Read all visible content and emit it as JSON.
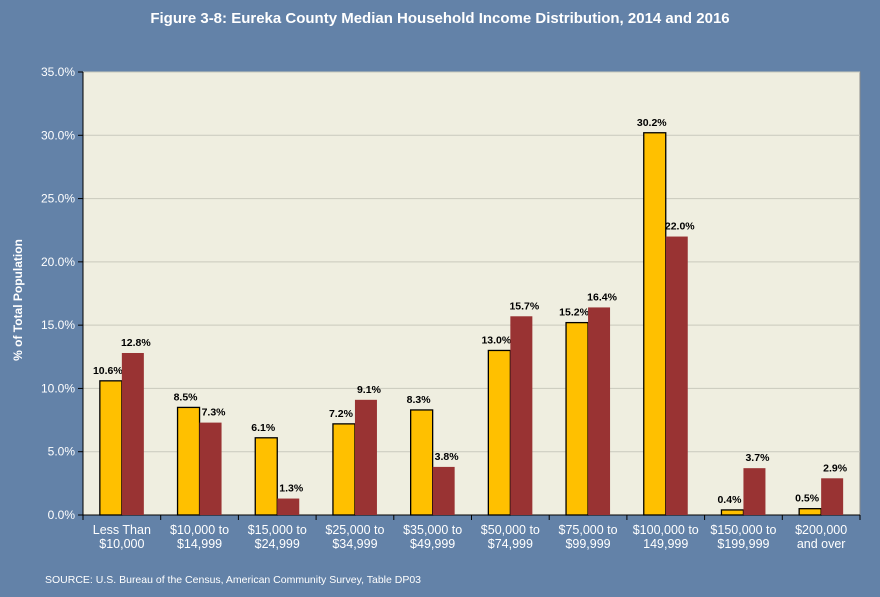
{
  "chart_data": {
    "type": "bar",
    "title": "Figure 3-8: Eureka County Median Household Income Distribution, 2014 and 2016",
    "ylabel": "% of Total Population",
    "xlabel": "",
    "ylim": [
      0,
      35
    ],
    "yticks": [
      "0.0%",
      "5.0%",
      "10.0%",
      "15.0%",
      "20.0%",
      "25.0%",
      "30.0%",
      "35.0%"
    ],
    "grid": true,
    "legend": "none",
    "categories": [
      [
        "Less Than",
        "$10,000"
      ],
      [
        "$10,000 to",
        "$14,999"
      ],
      [
        "$15,000 to",
        "$24,999"
      ],
      [
        "$25,000 to",
        "$34,999"
      ],
      [
        "$35,000 to",
        "$49,999"
      ],
      [
        "$50,000 to",
        "$74,999"
      ],
      [
        "$75,000 to",
        "$99,999"
      ],
      [
        "$100,000 to",
        "149,999"
      ],
      [
        "$150,000 to",
        "$199,999"
      ],
      [
        "$200,000",
        "and over"
      ]
    ],
    "series": [
      {
        "values": [
          10.6,
          8.5,
          6.1,
          7.2,
          8.3,
          13.0,
          15.2,
          30.2,
          0.4,
          0.5
        ],
        "labels": [
          "10.6%",
          "8.5%",
          "6.1%",
          "7.2%",
          "8.3%",
          "13.0%",
          "15.2%",
          "30.2%",
          "0.4%",
          "0.5%"
        ],
        "color": "#ffc000"
      },
      {
        "values": [
          12.8,
          7.3,
          1.3,
          9.1,
          3.8,
          15.7,
          16.4,
          22.0,
          3.7,
          2.9
        ],
        "labels": [
          "12.8%",
          "7.3%",
          "1.3%",
          "9.1%",
          "3.8%",
          "15.7%",
          "16.4%",
          "22.0%",
          "3.7%",
          "2.9%"
        ],
        "color": "#993333"
      }
    ],
    "plot_background": "#efeee0",
    "page_background": "#6382a8"
  },
  "source": "SOURCE: U.S.  Bureau of the Census, American Community Survey, Table DP03"
}
